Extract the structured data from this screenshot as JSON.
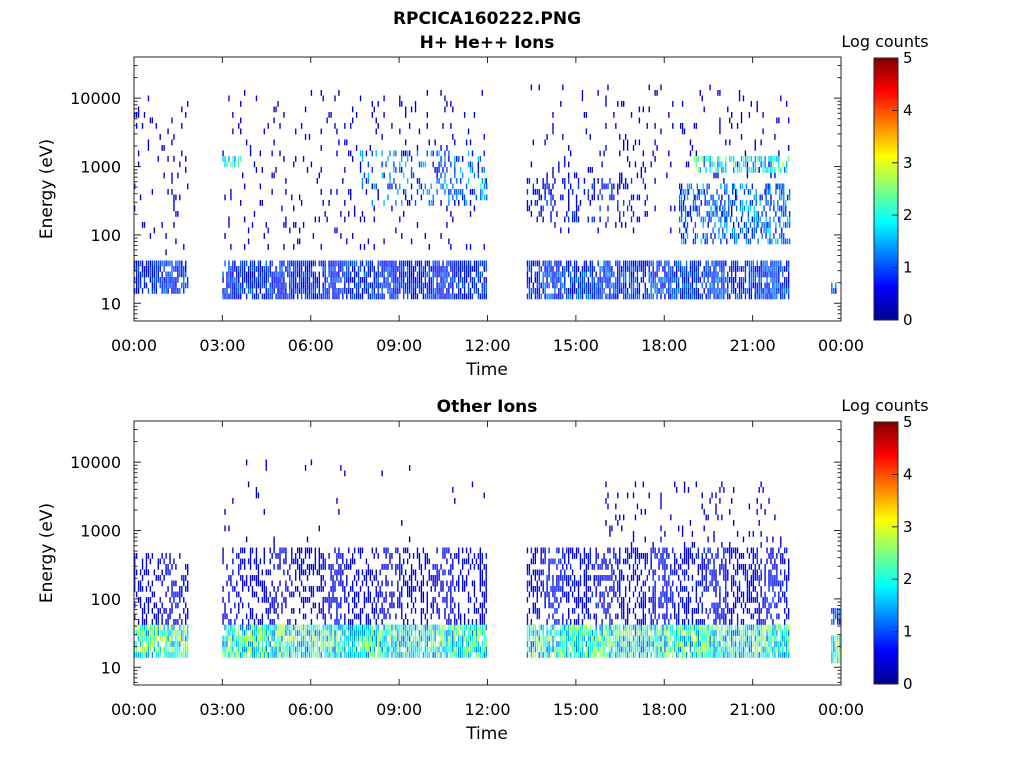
{
  "figure": {
    "filename": "RPCICA160222.PNG"
  },
  "colorbar": {
    "label": "Log counts",
    "min": 0,
    "max": 5,
    "ticks": [
      "0",
      "1",
      "2",
      "3",
      "4",
      "5"
    ],
    "colormap": "jet"
  },
  "chart_data": [
    {
      "type": "heatmap",
      "title": "H+ He++ Ions",
      "xlabel": "Time",
      "ylabel": "Energy (eV)",
      "yscale": "log",
      "ylim": [
        5.5,
        40000
      ],
      "xlim": [
        "00:00",
        "24:00"
      ],
      "xticks": [
        "00:00",
        "03:00",
        "06:00",
        "09:00",
        "12:00",
        "15:00",
        "18:00",
        "21:00",
        "00:00"
      ],
      "yticks": [
        "10",
        "100",
        "1000",
        "10000"
      ],
      "clim": [
        0,
        5
      ],
      "data_gaps": [
        [
          "01:55",
          "03:00"
        ],
        [
          "12:00",
          "13:20"
        ],
        [
          "22:15",
          "23:40"
        ]
      ],
      "bands": [
        {
          "start": "00:00",
          "end": "01:50",
          "emin": 14,
          "emax": 40,
          "level": 0.8,
          "density": 0.75
        },
        {
          "start": "00:00",
          "end": "01:50",
          "emin": 50,
          "emax": 12000,
          "level": 0.4,
          "density": 0.08
        },
        {
          "start": "03:00",
          "end": "12:00",
          "emin": 12,
          "emax": 40,
          "level": 0.8,
          "density": 0.78
        },
        {
          "start": "03:00",
          "end": "12:00",
          "emin": 60,
          "emax": 12000,
          "level": 0.4,
          "density": 0.06
        },
        {
          "start": "03:00",
          "end": "03:40",
          "emin": 900,
          "emax": 1300,
          "level": 1.8,
          "density": 0.6
        },
        {
          "start": "07:40",
          "end": "11:55",
          "emin": 250,
          "emax": 1600,
          "level": 1.2,
          "density": 0.25
        },
        {
          "start": "11:45",
          "end": "12:00",
          "emin": 300,
          "emax": 700,
          "level": 1.5,
          "density": 0.7
        },
        {
          "start": "13:20",
          "end": "22:15",
          "emin": 12,
          "emax": 40,
          "level": 0.9,
          "density": 0.78
        },
        {
          "start": "13:20",
          "end": "22:15",
          "emin": 100,
          "emax": 15000,
          "level": 0.4,
          "density": 0.06
        },
        {
          "start": "13:20",
          "end": "17:30",
          "emin": 150,
          "emax": 700,
          "level": 0.7,
          "density": 0.2
        },
        {
          "start": "18:30",
          "end": "22:15",
          "emin": 80,
          "emax": 600,
          "level": 1.2,
          "density": 0.45
        },
        {
          "start": "19:00",
          "end": "22:15",
          "emin": 800,
          "emax": 1300,
          "level": 1.9,
          "density": 0.6
        },
        {
          "start": "23:40",
          "end": "23:50",
          "emin": 13,
          "emax": 22,
          "level": 1.0,
          "density": 0.9
        }
      ]
    },
    {
      "type": "heatmap",
      "title": "Other Ions",
      "xlabel": "Time",
      "ylabel": "Energy (eV)",
      "yscale": "log",
      "ylim": [
        5.5,
        40000
      ],
      "xlim": [
        "00:00",
        "24:00"
      ],
      "xticks": [
        "00:00",
        "03:00",
        "06:00",
        "09:00",
        "12:00",
        "15:00",
        "18:00",
        "21:00",
        "00:00"
      ],
      "yticks": [
        "10",
        "100",
        "1000",
        "10000"
      ],
      "clim": [
        0,
        5
      ],
      "data_gaps": [
        [
          "01:55",
          "03:00"
        ],
        [
          "12:00",
          "13:20"
        ],
        [
          "22:15",
          "23:40"
        ]
      ],
      "bands": [
        {
          "start": "00:00",
          "end": "01:50",
          "emin": 15,
          "emax": 40,
          "level": 2.2,
          "density": 0.9
        },
        {
          "start": "00:00",
          "end": "01:50",
          "emin": 40,
          "emax": 500,
          "level": 0.5,
          "density": 0.35
        },
        {
          "start": "03:00",
          "end": "12:00",
          "emin": 14,
          "emax": 45,
          "level": 2.0,
          "density": 0.9
        },
        {
          "start": "03:00",
          "end": "12:00",
          "emin": 45,
          "emax": 600,
          "level": 0.5,
          "density": 0.4
        },
        {
          "start": "03:00",
          "end": "12:00",
          "emin": 600,
          "emax": 10000,
          "level": 0.3,
          "density": 0.01
        },
        {
          "start": "13:20",
          "end": "22:15",
          "emin": 14,
          "emax": 45,
          "level": 2.0,
          "density": 0.9
        },
        {
          "start": "13:20",
          "end": "22:15",
          "emin": 45,
          "emax": 600,
          "level": 0.6,
          "density": 0.45
        },
        {
          "start": "16:00",
          "end": "22:00",
          "emin": 600,
          "emax": 5000,
          "level": 0.4,
          "density": 0.08
        },
        {
          "start": "23:40",
          "end": "24:00",
          "emin": 40,
          "emax": 80,
          "level": 1.0,
          "density": 0.9
        },
        {
          "start": "23:40",
          "end": "24:00",
          "emin": 12,
          "emax": 30,
          "level": 2.2,
          "density": 0.95
        }
      ]
    }
  ]
}
